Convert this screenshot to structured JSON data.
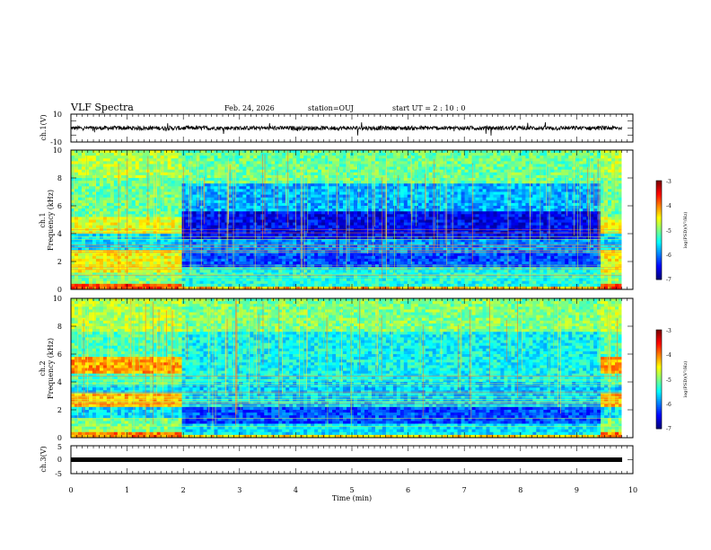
{
  "header": {
    "title": "VLF Spectra",
    "date": "Feb. 24, 2026",
    "station": "station=OUJ",
    "start_ut": "start  UT =   2 : 10 : 0"
  },
  "chart_data": [
    {
      "type": "line",
      "name": "ch1-waveform",
      "ylabel": "ch.1(V)",
      "ylim": [
        -10,
        10
      ],
      "yticks": [
        "10",
        "-10"
      ],
      "xlim": [
        0,
        10
      ],
      "baseline": 0,
      "noise_amplitude": 1.5
    },
    {
      "type": "heatmap",
      "name": "ch1-spectrogram",
      "ylabel": "ch.1\nFrequency (kHz)",
      "ylim": [
        0,
        10
      ],
      "yticks": [
        "10",
        "8",
        "6",
        "4",
        "2",
        "0"
      ],
      "xlim": [
        0,
        10
      ],
      "segments": [
        {
          "x0": 0,
          "x1": 2.0,
          "level": "high"
        },
        {
          "x0": 2.0,
          "x1": 9.4,
          "level": "low"
        },
        {
          "x0": 9.4,
          "x1": 9.8,
          "level": "high"
        }
      ],
      "colorbar": {
        "label": "log(PSD)(V²/Hz)",
        "ticks": [
          "-3",
          "-4",
          "-5",
          "-6",
          "-7"
        ],
        "range": [
          -7,
          -3
        ]
      }
    },
    {
      "type": "heatmap",
      "name": "ch2-spectrogram",
      "ylabel": "ch.2\nFrequency (kHz)",
      "ylim": [
        0,
        10
      ],
      "yticks": [
        "10",
        "8",
        "6",
        "4",
        "2",
        "0"
      ],
      "xlim": [
        0,
        10
      ],
      "segments": [
        {
          "x0": 0,
          "x1": 2.0,
          "level": "high"
        },
        {
          "x0": 2.0,
          "x1": 9.4,
          "level": "low"
        },
        {
          "x0": 9.4,
          "x1": 9.8,
          "level": "high"
        }
      ],
      "colorbar": {
        "label": "log(PSD)(V²/Hz)",
        "ticks": [
          "-3",
          "-4",
          "-5",
          "-6",
          "-7"
        ],
        "range": [
          -7,
          -3
        ]
      }
    },
    {
      "type": "line",
      "name": "ch3-waveform",
      "ylabel": "ch.3(V)",
      "ylim": [
        -5,
        5
      ],
      "yticks": [
        "5",
        "0",
        "-5"
      ],
      "xlim": [
        0,
        10
      ],
      "baseline": -0.4,
      "xlabel": "Time (min)",
      "xticks": [
        "0",
        "1",
        "2",
        "3",
        "4",
        "5",
        "6",
        "7",
        "8",
        "9",
        "10"
      ]
    }
  ]
}
